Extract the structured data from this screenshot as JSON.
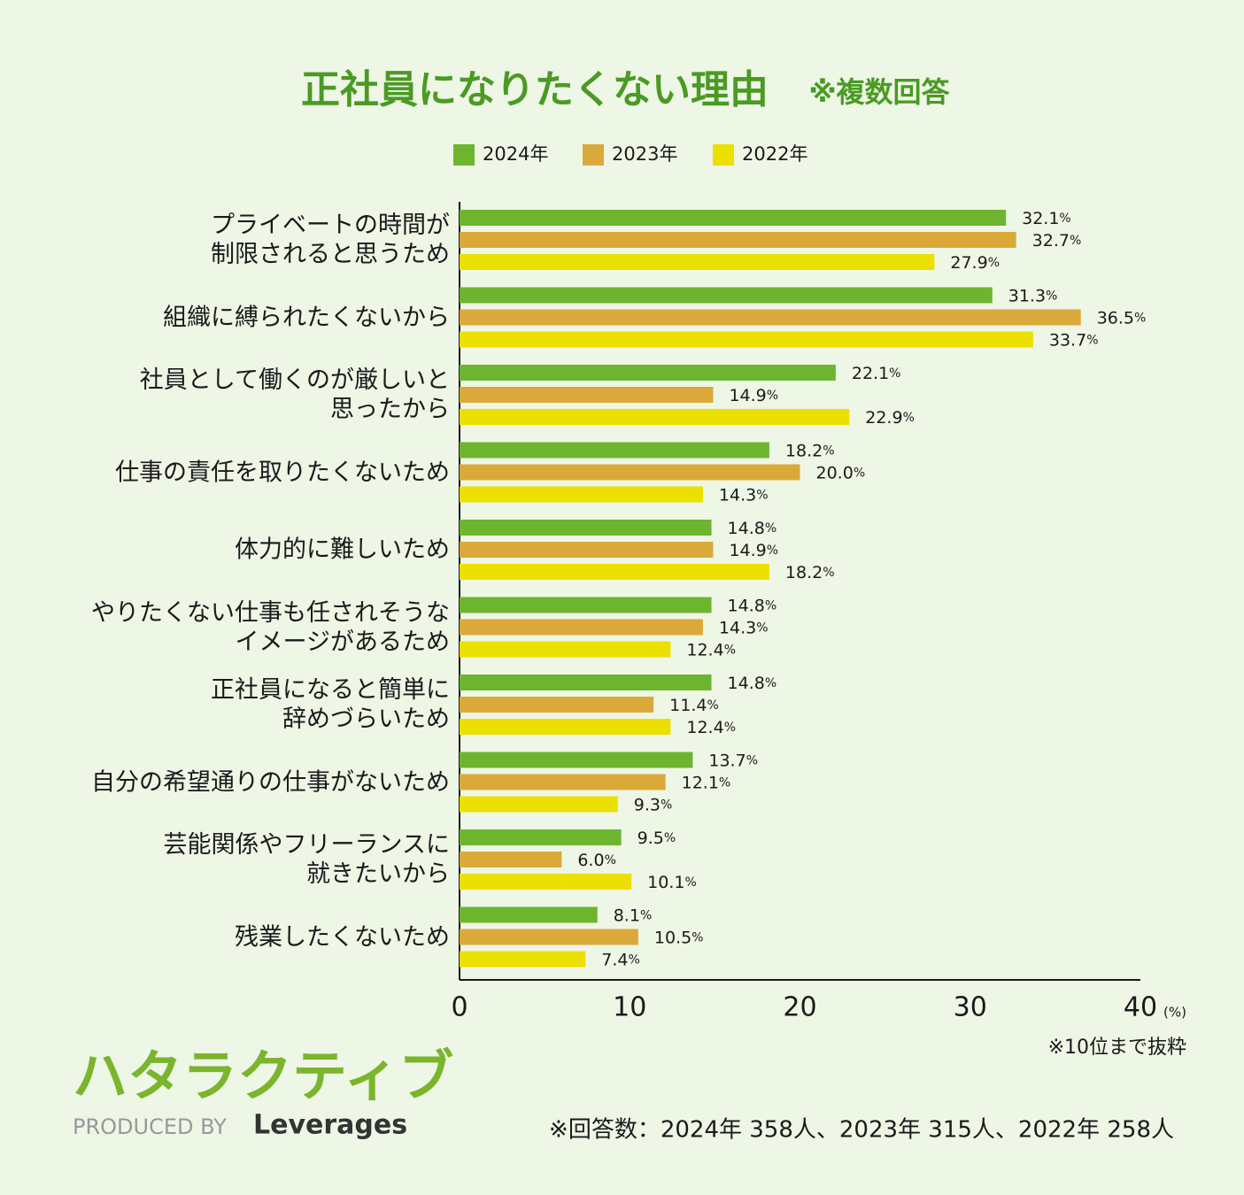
{
  "chart_data": {
    "type": "bar",
    "orientation": "horizontal",
    "title": "正社員になりたくない理由",
    "subtitle": "※複数回答",
    "categories": [
      "プライベートの時間が\n制限されると思うため",
      "組織に縛られたくないから",
      "社員として働くのが厳しいと\n思ったから",
      "仕事の責任を取りたくないため",
      "体力的に難しいため",
      "やりたくない仕事も任されそうな\nイメージがあるため",
      "正社員になると簡単に\n辞めづらいため",
      "自分の希望通りの仕事がないため",
      "芸能関係やフリーランスに\n就きたいから",
      "残業したくないため"
    ],
    "series": [
      {
        "name": "2024年",
        "color": "#6db52f",
        "values": [
          32.1,
          31.3,
          22.1,
          18.2,
          14.8,
          14.8,
          14.8,
          13.7,
          9.5,
          8.1
        ],
        "value_labels": [
          "32.1%",
          "31.3%",
          "22.1%",
          "18.2%",
          "14.8%",
          "14.8%",
          "14.8%",
          "13.7%",
          "9.5%",
          "8.1%"
        ]
      },
      {
        "name": "2023年",
        "color": "#dba93a",
        "values": [
          32.7,
          36.5,
          14.9,
          20.0,
          14.9,
          14.3,
          11.4,
          12.1,
          6.0,
          10.5
        ],
        "value_labels": [
          "32.7%",
          "36.5%",
          "14.9%",
          "20.0%",
          "14.9%",
          "14.3%",
          "11.4%",
          "12.1%",
          "6.0%",
          "10.5%"
        ]
      },
      {
        "name": "2022年",
        "color": "#ece000",
        "values": [
          27.9,
          33.7,
          22.9,
          14.3,
          18.2,
          12.4,
          12.4,
          9.3,
          10.1,
          7.4
        ],
        "value_labels": [
          "27.9%",
          "33.7%",
          "22.9%",
          "14.3%",
          "18.2%",
          "12.4%",
          "12.4%",
          "9.3%",
          "10.1%",
          "7.4%"
        ]
      }
    ],
    "xlim": [
      0,
      40
    ],
    "xticks": [
      0,
      10,
      20,
      30,
      40
    ],
    "x_unit": "(%)",
    "notes": [
      "※10位まで抜粋",
      "※回答数：2024年 358人、2023年 315人、2022年 258人"
    ],
    "logo": {
      "brand": "ハタラクティブ",
      "produced_by": "PRODUCED BY",
      "company": "Leverages"
    }
  }
}
